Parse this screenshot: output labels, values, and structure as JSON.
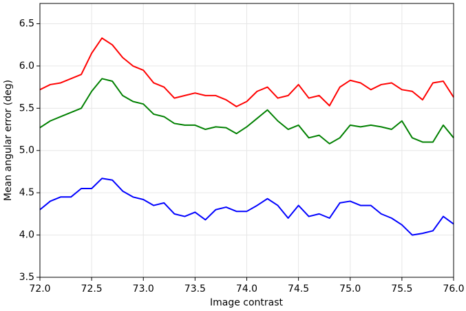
{
  "chart_data": {
    "type": "line",
    "xlabel": "Image contrast",
    "ylabel": "Mean angular error (deg)",
    "x": [
      72.0,
      72.1,
      72.2,
      72.3,
      72.4,
      72.5,
      72.6,
      72.7,
      72.8,
      72.9,
      73.0,
      73.1,
      73.2,
      73.3,
      73.4,
      73.5,
      73.6,
      73.7,
      73.8,
      73.9,
      74.0,
      74.1,
      74.2,
      74.3,
      74.4,
      74.5,
      74.6,
      74.7,
      74.8,
      74.9,
      75.0,
      75.1,
      75.2,
      75.3,
      75.4,
      75.5,
      75.6,
      75.7,
      75.8,
      75.9,
      76.0
    ],
    "series": [
      {
        "color": "#ff0000",
        "values": [
          5.72,
          5.78,
          5.8,
          5.85,
          5.9,
          6.15,
          6.33,
          6.25,
          6.1,
          6.0,
          5.95,
          5.8,
          5.75,
          5.62,
          5.65,
          5.68,
          5.65,
          5.65,
          5.6,
          5.52,
          5.58,
          5.7,
          5.75,
          5.62,
          5.65,
          5.78,
          5.62,
          5.65,
          5.53,
          5.75,
          5.83,
          5.8,
          5.72,
          5.78,
          5.8,
          5.72,
          5.7,
          5.6,
          5.8,
          5.82,
          5.63
        ]
      },
      {
        "color": "#008000",
        "values": [
          5.27,
          5.35,
          5.4,
          5.45,
          5.5,
          5.7,
          5.85,
          5.82,
          5.65,
          5.58,
          5.55,
          5.43,
          5.4,
          5.32,
          5.3,
          5.3,
          5.25,
          5.28,
          5.27,
          5.2,
          5.28,
          5.38,
          5.48,
          5.35,
          5.25,
          5.3,
          5.15,
          5.18,
          5.08,
          5.15,
          5.3,
          5.28,
          5.3,
          5.28,
          5.25,
          5.35,
          5.15,
          5.1,
          5.1,
          5.3,
          5.15
        ]
      },
      {
        "color": "#0000ff",
        "values": [
          4.3,
          4.4,
          4.45,
          4.45,
          4.55,
          4.55,
          4.67,
          4.65,
          4.52,
          4.45,
          4.42,
          4.35,
          4.38,
          4.25,
          4.22,
          4.27,
          4.18,
          4.3,
          4.33,
          4.28,
          4.28,
          4.35,
          4.43,
          4.35,
          4.2,
          4.35,
          4.22,
          4.25,
          4.2,
          4.38,
          4.4,
          4.35,
          4.35,
          4.25,
          4.2,
          4.12,
          4.0,
          4.02,
          4.05,
          4.22,
          4.13
        ]
      }
    ],
    "xlim": [
      72.0,
      76.0
    ],
    "xticks": [
      {
        "value": 72,
        "label": "72.0"
      },
      72.5,
      {
        "value": 73,
        "label": "73.0"
      },
      73.5,
      {
        "value": 74,
        "label": "74.0"
      },
      74.5,
      {
        "value": 75,
        "label": "75.0"
      },
      75.5,
      {
        "value": 76,
        "label": "76.0"
      }
    ],
    "ylim": [
      3.5,
      6.74
    ],
    "yticks": [
      3.5,
      {
        "value": 4,
        "label": "4.0"
      },
      4.5,
      {
        "value": 5,
        "label": "5.0"
      },
      5.5,
      {
        "value": 6,
        "label": "6.0"
      },
      6.5
    ],
    "grid": true
  }
}
